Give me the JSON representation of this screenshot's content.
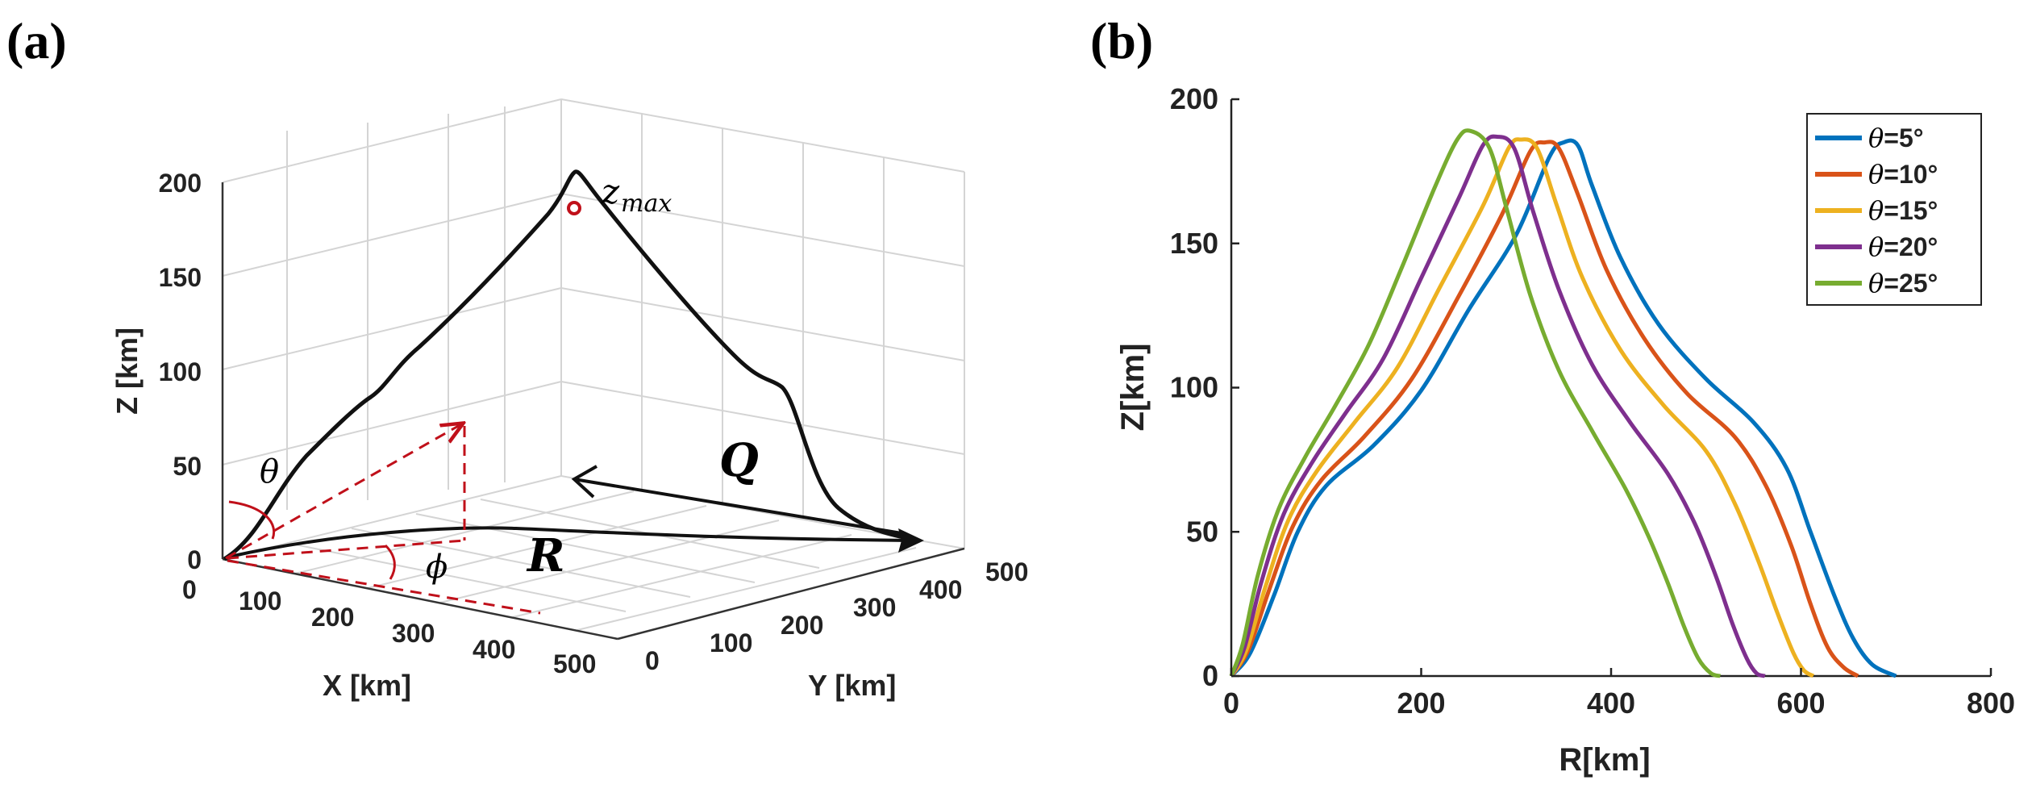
{
  "panel_labels": [
    "(a)",
    "(b)"
  ],
  "panel_a": {
    "xlabel": "X [km]",
    "ylabel": "Y [km]",
    "zlabel": "Z [km]",
    "x_ticks": [
      "0",
      "100",
      "200",
      "300",
      "400",
      "500"
    ],
    "y_ticks": [
      "0",
      "100",
      "200",
      "300",
      "400",
      "500"
    ],
    "z_ticks": [
      "0",
      "50",
      "100",
      "150",
      "200"
    ],
    "annotations": {
      "zmax": "z",
      "zmax_sub": "max",
      "theta": "θ",
      "phi": "ϕ",
      "q": "Q",
      "r": "R"
    },
    "colors": {
      "trajectory": "#111111",
      "guide": "#c0101a"
    }
  },
  "chart_data": {
    "type": "line",
    "title": "",
    "xlabel": "R[km]",
    "ylabel": "Z[km]",
    "xlim": [
      0,
      800
    ],
    "ylim": [
      0,
      200
    ],
    "x_ticks": [
      0,
      200,
      400,
      600,
      800
    ],
    "y_ticks": [
      0,
      50,
      100,
      150,
      200
    ],
    "legend_position": "top-right",
    "series": [
      {
        "name": "θ=5°",
        "label_sym": "θ",
        "label_val": "=5°",
        "color": "#0072BD",
        "points": [
          [
            0,
            0
          ],
          [
            20,
            8
          ],
          [
            45,
            28
          ],
          [
            70,
            50
          ],
          [
            100,
            66
          ],
          [
            150,
            80
          ],
          [
            200,
            99
          ],
          [
            250,
            127
          ],
          [
            300,
            153
          ],
          [
            335,
            180
          ],
          [
            350,
            185
          ],
          [
            365,
            184
          ],
          [
            380,
            170
          ],
          [
            410,
            145
          ],
          [
            450,
            122
          ],
          [
            500,
            103
          ],
          [
            550,
            88
          ],
          [
            585,
            72
          ],
          [
            610,
            50
          ],
          [
            635,
            28
          ],
          [
            655,
            13
          ],
          [
            675,
            4
          ],
          [
            700,
            0
          ]
        ]
      },
      {
        "name": "θ=10°",
        "label_sym": "θ",
        "label_val": "=10°",
        "color": "#D95319",
        "points": [
          [
            0,
            0
          ],
          [
            18,
            9
          ],
          [
            40,
            30
          ],
          [
            65,
            52
          ],
          [
            95,
            68
          ],
          [
            140,
            83
          ],
          [
            190,
            103
          ],
          [
            240,
            132
          ],
          [
            285,
            160
          ],
          [
            315,
            182
          ],
          [
            330,
            185
          ],
          [
            345,
            183
          ],
          [
            365,
            167
          ],
          [
            395,
            141
          ],
          [
            435,
            117
          ],
          [
            480,
            98
          ],
          [
            530,
            83
          ],
          [
            563,
            66
          ],
          [
            590,
            45
          ],
          [
            610,
            25
          ],
          [
            628,
            10
          ],
          [
            645,
            3
          ],
          [
            660,
            0
          ]
        ]
      },
      {
        "name": "θ=15°",
        "label_sym": "θ",
        "label_val": "=15°",
        "color": "#EDB120",
        "points": [
          [
            0,
            0
          ],
          [
            16,
            9
          ],
          [
            36,
            31
          ],
          [
            60,
            54
          ],
          [
            90,
            71
          ],
          [
            130,
            88
          ],
          [
            175,
            107
          ],
          [
            220,
            135
          ],
          [
            265,
            163
          ],
          [
            292,
            183
          ],
          [
            305,
            186
          ],
          [
            322,
            183
          ],
          [
            343,
            163
          ],
          [
            370,
            138
          ],
          [
            410,
            113
          ],
          [
            455,
            94
          ],
          [
            500,
            78
          ],
          [
            530,
            60
          ],
          [
            555,
            40
          ],
          [
            575,
            22
          ],
          [
            592,
            8
          ],
          [
            603,
            2
          ],
          [
            613,
            0
          ]
        ]
      },
      {
        "name": "θ=20°",
        "label_sym": "θ",
        "label_val": "=20°",
        "color": "#7E2F8E",
        "points": [
          [
            0,
            0
          ],
          [
            14,
            10
          ],
          [
            32,
            33
          ],
          [
            55,
            56
          ],
          [
            85,
            74
          ],
          [
            120,
            91
          ],
          [
            160,
            110
          ],
          [
            200,
            138
          ],
          [
            240,
            166
          ],
          [
            265,
            184
          ],
          [
            280,
            187
          ],
          [
            298,
            183
          ],
          [
            318,
            161
          ],
          [
            345,
            134
          ],
          [
            380,
            108
          ],
          [
            420,
            88
          ],
          [
            460,
            70
          ],
          [
            488,
            53
          ],
          [
            510,
            35
          ],
          [
            528,
            18
          ],
          [
            543,
            6
          ],
          [
            553,
            1
          ],
          [
            562,
            0
          ]
        ]
      },
      {
        "name": "θ=25°",
        "label_sym": "θ",
        "label_val": "=25°",
        "color": "#77AC30",
        "points": [
          [
            0,
            0
          ],
          [
            12,
            11
          ],
          [
            28,
            35
          ],
          [
            50,
            58
          ],
          [
            78,
            76
          ],
          [
            110,
            94
          ],
          [
            145,
            115
          ],
          [
            180,
            142
          ],
          [
            215,
            170
          ],
          [
            238,
            186
          ],
          [
            252,
            189
          ],
          [
            272,
            183
          ],
          [
            290,
            162
          ],
          [
            315,
            132
          ],
          [
            345,
            106
          ],
          [
            380,
            85
          ],
          [
            415,
            65
          ],
          [
            440,
            48
          ],
          [
            460,
            32
          ],
          [
            477,
            17
          ],
          [
            492,
            6
          ],
          [
            505,
            1
          ],
          [
            515,
            0
          ]
        ]
      }
    ]
  }
}
